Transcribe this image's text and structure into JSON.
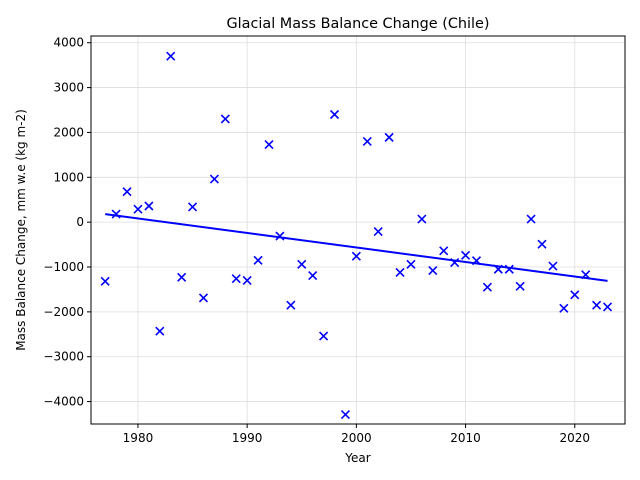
{
  "chart_data": {
    "type": "scatter",
    "title": "Glacial Mass Balance Change (Chile)",
    "xlabel": "Year",
    "ylabel": "Mass Balance Change, mm w.e (kg m-2)",
    "xlim": [
      1975.7,
      2024.6
    ],
    "ylim": [
      -4500,
      4150
    ],
    "xticks": [
      1980,
      1990,
      2000,
      2010,
      2020
    ],
    "yticks": [
      -4000,
      -3000,
      -2000,
      -1000,
      0,
      1000,
      2000,
      3000,
      4000
    ],
    "grid": true,
    "marker": "x",
    "marker_color": "#0000ff",
    "trend_color": "#0000ff",
    "points": [
      {
        "x": 1977,
        "y": -1320
      },
      {
        "x": 1978,
        "y": 180
      },
      {
        "x": 1979,
        "y": 680
      },
      {
        "x": 1980,
        "y": 290
      },
      {
        "x": 1981,
        "y": 360
      },
      {
        "x": 1982,
        "y": -2430
      },
      {
        "x": 1983,
        "y": 3700
      },
      {
        "x": 1984,
        "y": -1230
      },
      {
        "x": 1985,
        "y": 340
      },
      {
        "x": 1986,
        "y": -1690
      },
      {
        "x": 1987,
        "y": 960
      },
      {
        "x": 1988,
        "y": 2300
      },
      {
        "x": 1989,
        "y": -1260
      },
      {
        "x": 1990,
        "y": -1300
      },
      {
        "x": 1991,
        "y": -850
      },
      {
        "x": 1992,
        "y": 1730
      },
      {
        "x": 1993,
        "y": -310
      },
      {
        "x": 1994,
        "y": -1850
      },
      {
        "x": 1995,
        "y": -940
      },
      {
        "x": 1996,
        "y": -1190
      },
      {
        "x": 1997,
        "y": -2540
      },
      {
        "x": 1998,
        "y": 2400
      },
      {
        "x": 1999,
        "y": -4290
      },
      {
        "x": 2000,
        "y": -760
      },
      {
        "x": 2001,
        "y": 1800
      },
      {
        "x": 2002,
        "y": -210
      },
      {
        "x": 2003,
        "y": 1890
      },
      {
        "x": 2004,
        "y": -1120
      },
      {
        "x": 2005,
        "y": -940
      },
      {
        "x": 2006,
        "y": 70
      },
      {
        "x": 2007,
        "y": -1080
      },
      {
        "x": 2008,
        "y": -640
      },
      {
        "x": 2009,
        "y": -900
      },
      {
        "x": 2010,
        "y": -740
      },
      {
        "x": 2011,
        "y": -860
      },
      {
        "x": 2012,
        "y": -1450
      },
      {
        "x": 2013,
        "y": -1050
      },
      {
        "x": 2014,
        "y": -1050
      },
      {
        "x": 2015,
        "y": -1430
      },
      {
        "x": 2016,
        "y": 70
      },
      {
        "x": 2017,
        "y": -490
      },
      {
        "x": 2018,
        "y": -980
      },
      {
        "x": 2019,
        "y": -1920
      },
      {
        "x": 2020,
        "y": -1620
      },
      {
        "x": 2021,
        "y": -1170
      },
      {
        "x": 2022,
        "y": -1850
      },
      {
        "x": 2023,
        "y": -1890
      }
    ],
    "trend_line": {
      "x": [
        1977,
        2023
      ],
      "y": [
        180,
        -1310
      ]
    }
  }
}
